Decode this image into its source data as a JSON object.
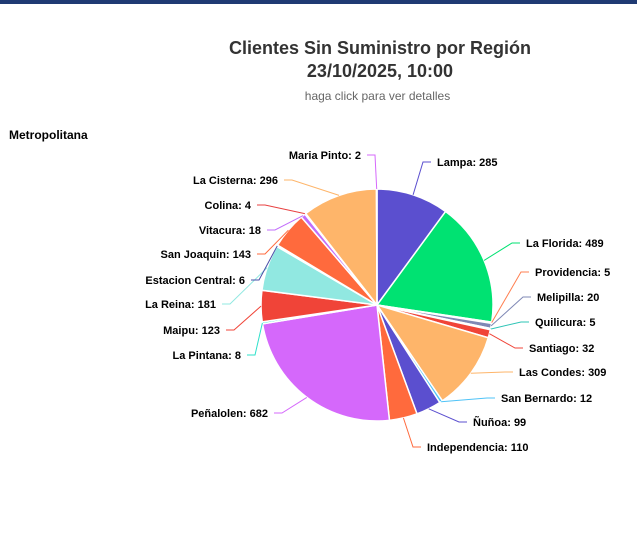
{
  "header": {
    "title_line1": "Clientes Sin Suministro por Región",
    "title_line2": "23/10/2025, 10:00",
    "subtitle": "haga click para ver detalles"
  },
  "chart_data": {
    "type": "pie",
    "title": "Metropolitana",
    "slices": [
      {
        "label": "Lampa",
        "value": 285,
        "color": "#5b4fcf"
      },
      {
        "label": "La Florida",
        "value": 489,
        "color": "#00e272"
      },
      {
        "label": "Providencia",
        "value": 5,
        "color": "#ff7f50"
      },
      {
        "label": "Melipilla",
        "value": 20,
        "color": "#7f88b5"
      },
      {
        "label": "Quilicura",
        "value": 5,
        "color": "#2ec4b6"
      },
      {
        "label": "Santiago",
        "value": 32,
        "color": "#f04438"
      },
      {
        "label": "Las Condes",
        "value": 309,
        "color": "#feb56a"
      },
      {
        "label": "San Bernardo",
        "value": 12,
        "color": "#4fc3f7"
      },
      {
        "label": "Ñuñoa",
        "value": 99,
        "color": "#5b4fcf"
      },
      {
        "label": "Independencia",
        "value": 110,
        "color": "#ff6a3d"
      },
      {
        "label": "Peñalolen",
        "value": 682,
        "color": "#d568fb"
      },
      {
        "label": "La Pintana",
        "value": 8,
        "color": "#2ee0ca"
      },
      {
        "label": "Maipu",
        "value": 123,
        "color": "#f04438"
      },
      {
        "label": "La Reina",
        "value": 181,
        "color": "#91e8e1"
      },
      {
        "label": "Estacion Central",
        "value": 6,
        "color": "#4a4fa8"
      },
      {
        "label": "San Joaquin",
        "value": 143,
        "color": "#ff6a3d"
      },
      {
        "label": "Vitacura",
        "value": 18,
        "color": "#c26dfb"
      },
      {
        "label": "Colina",
        "value": 4,
        "color": "#e84040"
      },
      {
        "label": "La Cisterna",
        "value": 296,
        "color": "#feb56a"
      },
      {
        "label": "Maria Pinto",
        "value": 2,
        "color": "#d568fb"
      }
    ]
  }
}
